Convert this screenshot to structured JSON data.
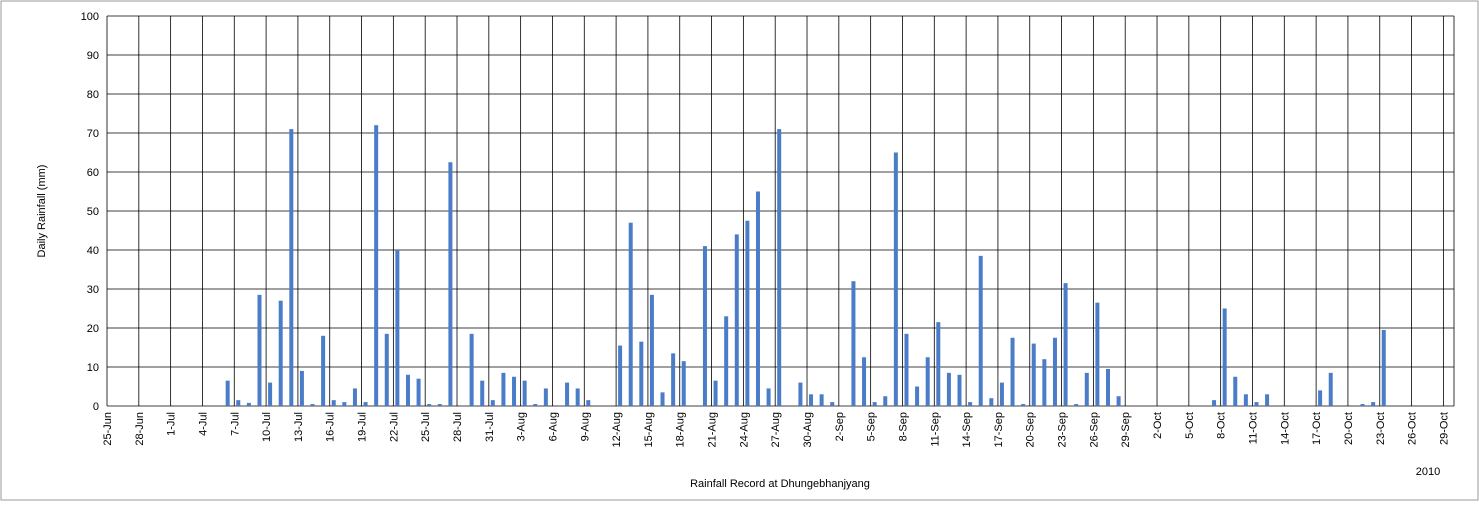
{
  "chart_data": {
    "type": "bar",
    "y_label": "Daily Rainfall (mm)",
    "x_label": "Rainfall Record at Dhungebhanjyang",
    "annotation": "2010",
    "color": "#4a7cc7",
    "grid": true,
    "categories": [
      "25-Jun",
      null,
      null,
      "28-Jun",
      null,
      null,
      "1-Jul",
      null,
      null,
      "4-Jul",
      null,
      null,
      "7-Jul",
      null,
      null,
      "10-Jul",
      null,
      null,
      "13-Jul",
      null,
      null,
      "16-Jul",
      null,
      null,
      "19-Jul",
      null,
      null,
      "22-Jul",
      null,
      null,
      "25-Jul",
      null,
      null,
      "28-Jul",
      null,
      null,
      "31-Jul",
      null,
      null,
      "3-Aug",
      null,
      null,
      "6-Aug",
      null,
      null,
      "9-Aug",
      null,
      null,
      "12-Aug",
      null,
      null,
      "15-Aug",
      null,
      null,
      "18-Aug",
      null,
      null,
      "21-Aug",
      null,
      null,
      "24-Aug",
      null,
      null,
      "27-Aug",
      null,
      null,
      "30-Aug",
      null,
      null,
      "2-Sep",
      null,
      null,
      "5-Sep",
      null,
      null,
      "8-Sep",
      null,
      null,
      "11-Sep",
      null,
      null,
      "14-Sep",
      null,
      null,
      "17-Sep",
      null,
      null,
      "20-Sep",
      null,
      null,
      "23-Sep",
      null,
      null,
      "26-Sep",
      null,
      null,
      "29-Sep",
      null,
      null,
      "2-Oct",
      null,
      null,
      "5-Oct",
      null,
      null,
      "8-Oct",
      null,
      null,
      "11-Oct",
      null,
      null,
      "14-Oct",
      null,
      null,
      "17-Oct",
      null,
      null,
      "20-Oct",
      null,
      null,
      "23-Oct",
      null,
      null,
      "26-Oct",
      null,
      null,
      "29-Oct",
      null
    ],
    "values": [
      0,
      0,
      0,
      0,
      0,
      0,
      0,
      0,
      0,
      0,
      0,
      6.5,
      1.5,
      0.8,
      28.5,
      6,
      27,
      71,
      9,
      0.5,
      18,
      1.5,
      1,
      4.5,
      1,
      72,
      18.5,
      40,
      8,
      7,
      0.5,
      0.5,
      62.5,
      0,
      18.5,
      6.5,
      1.5,
      8.5,
      7.5,
      6.5,
      0.5,
      4.5,
      0,
      6,
      4.5,
      1.5,
      0,
      0,
      15.5,
      47,
      16.5,
      28.5,
      3.5,
      13.5,
      11.5,
      0,
      41,
      6.5,
      23,
      44,
      47.5,
      55,
      4.5,
      71,
      0,
      6,
      3,
      3,
      1,
      0,
      32,
      12.5,
      1,
      2.5,
      65,
      18.5,
      5,
      12.5,
      21.5,
      8.5,
      8,
      1,
      38.5,
      2,
      6,
      17.5,
      0.5,
      16,
      12,
      17.5,
      31.5,
      0.5,
      8.5,
      26.5,
      9.5,
      2.5,
      0,
      0,
      0,
      0,
      0,
      0,
      0,
      0,
      1.5,
      25,
      7.5,
      3,
      1,
      3,
      0,
      0,
      0,
      0,
      4,
      8.5,
      0,
      0,
      0.5,
      1,
      19.5,
      0,
      0,
      0,
      0,
      0,
      0,
      0
    ],
    "ylim": [
      0,
      100
    ],
    "yticks": [
      0,
      10,
      20,
      30,
      40,
      50,
      60,
      70,
      80,
      90,
      100
    ]
  }
}
